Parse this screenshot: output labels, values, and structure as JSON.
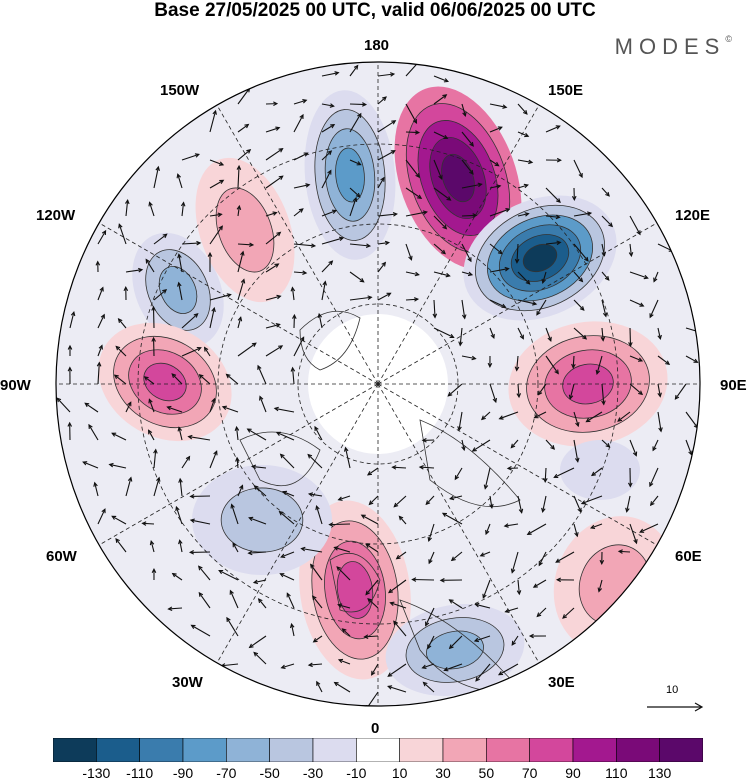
{
  "title": "Base 27/05/2025 00 UTC, valid 06/06/2025 00 UTC",
  "brand": "MODES",
  "brand_mark": "©",
  "longitude_labels": [
    "180",
    "150E",
    "120E",
    "90E",
    "60E",
    "30E",
    "0",
    "30W",
    "60W",
    "90W",
    "120W",
    "150W"
  ],
  "vector_reference": {
    "value": "10"
  },
  "colorbar": {
    "ticks": [
      "-130",
      "-110",
      "-90",
      "-70",
      "-50",
      "-30",
      "-10",
      "10",
      "30",
      "50",
      "70",
      "90",
      "110",
      "130"
    ],
    "colors": [
      "#0d3b5a",
      "#1b5d8c",
      "#3a7cad",
      "#5c9bc9",
      "#8fb3d7",
      "#b9c6e0",
      "#dcdcef",
      "#ffffff",
      "#f8d5d8",
      "#f2a6b6",
      "#e774a3",
      "#d3479c",
      "#a3188f",
      "#7a0a78",
      "#5b086a"
    ]
  },
  "colors": {
    "land_outline": "#333333",
    "grid": "#222222",
    "vector": "#111111"
  }
}
